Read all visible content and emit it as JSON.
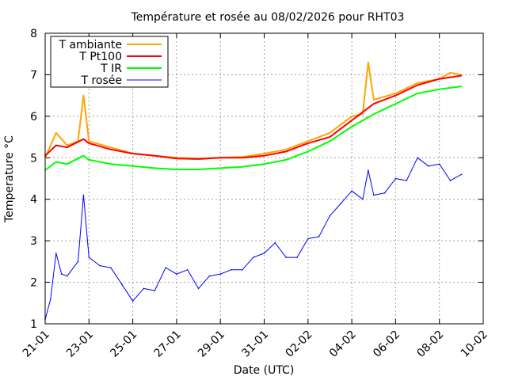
{
  "chart_data": {
    "type": "line",
    "title": "Température et rosée au 08/02/2026 pour RHT03",
    "xlabel": "Date (UTC)",
    "ylabel": "Temperature °C",
    "grid": true,
    "legend_position": "top-left",
    "x_ticks": [
      "21-01",
      "23-01",
      "25-01",
      "27-01",
      "29-01",
      "31-01",
      "02-02",
      "04-02",
      "06-02",
      "08-02",
      "10-02"
    ],
    "x_range": [
      "2026-01-21",
      "2026-02-10"
    ],
    "y_ticks": [
      1,
      2,
      3,
      4,
      5,
      6,
      7,
      8
    ],
    "ylim": [
      1,
      8
    ],
    "series": [
      {
        "name": "T ambiante",
        "color": "#ffa500",
        "x": [
          "2026-01-21",
          "2026-01-21T12",
          "2026-01-22",
          "2026-01-22T12",
          "2026-01-22T18",
          "2026-01-23",
          "2026-01-24",
          "2026-01-25",
          "2026-01-26",
          "2026-01-27",
          "2026-01-28",
          "2026-01-29",
          "2026-01-30",
          "2026-01-31",
          "2026-02-01",
          "2026-02-02",
          "2026-02-03",
          "2026-02-04",
          "2026-02-04T12",
          "2026-02-04T18",
          "2026-02-05",
          "2026-02-06",
          "2026-02-07",
          "2026-02-08",
          "2026-02-08T12",
          "2026-02-09"
        ],
        "values": [
          5.0,
          5.6,
          5.3,
          5.4,
          6.5,
          5.4,
          5.25,
          5.1,
          5.05,
          5.0,
          4.98,
          5.0,
          5.02,
          5.1,
          5.2,
          5.4,
          5.6,
          6.0,
          6.05,
          7.3,
          6.4,
          6.55,
          6.8,
          6.9,
          7.05,
          7.0
        ]
      },
      {
        "name": "T Pt100",
        "color": "#ff0000",
        "x": [
          "2026-01-21",
          "2026-01-21T12",
          "2026-01-22",
          "2026-01-22T18",
          "2026-01-23",
          "2026-01-24",
          "2026-01-25",
          "2026-01-26",
          "2026-01-27",
          "2026-01-28",
          "2026-01-29",
          "2026-01-30",
          "2026-01-31",
          "2026-02-01",
          "2026-02-02",
          "2026-02-03",
          "2026-02-04",
          "2026-02-05",
          "2026-02-06",
          "2026-02-07",
          "2026-02-08",
          "2026-02-09"
        ],
        "values": [
          5.05,
          5.3,
          5.25,
          5.45,
          5.35,
          5.2,
          5.1,
          5.05,
          4.98,
          4.97,
          5.0,
          5.0,
          5.05,
          5.15,
          5.35,
          5.5,
          5.9,
          6.3,
          6.5,
          6.75,
          6.9,
          6.98
        ]
      },
      {
        "name": "T IR",
        "color": "#00ff00",
        "x": [
          "2026-01-21",
          "2026-01-21T12",
          "2026-01-22",
          "2026-01-22T18",
          "2026-01-23",
          "2026-01-24",
          "2026-01-25",
          "2026-01-26",
          "2026-01-27",
          "2026-01-28",
          "2026-01-29",
          "2026-01-30",
          "2026-01-31",
          "2026-02-01",
          "2026-02-02",
          "2026-02-03",
          "2026-02-04",
          "2026-02-05",
          "2026-02-06",
          "2026-02-07",
          "2026-02-08",
          "2026-02-09"
        ],
        "values": [
          4.7,
          4.9,
          4.85,
          5.05,
          4.95,
          4.85,
          4.8,
          4.75,
          4.72,
          4.72,
          4.75,
          4.78,
          4.85,
          4.95,
          5.15,
          5.4,
          5.75,
          6.05,
          6.3,
          6.55,
          6.65,
          6.72
        ]
      },
      {
        "name": "T rosée",
        "color": "#0000ff",
        "x": [
          "2026-01-21",
          "2026-01-21T06",
          "2026-01-21T12",
          "2026-01-21T18",
          "2026-01-22",
          "2026-01-22T12",
          "2026-01-22T18",
          "2026-01-23",
          "2026-01-23T12",
          "2026-01-24",
          "2026-01-24T12",
          "2026-01-25",
          "2026-01-25T12",
          "2026-01-26",
          "2026-01-26T12",
          "2026-01-27",
          "2026-01-27T12",
          "2026-01-28",
          "2026-01-28T12",
          "2026-01-29",
          "2026-01-29T12",
          "2026-01-30",
          "2026-01-30T12",
          "2026-01-31",
          "2026-01-31T12",
          "2026-02-01",
          "2026-02-01T12",
          "2026-02-02",
          "2026-02-02T12",
          "2026-02-03",
          "2026-02-03T12",
          "2026-02-04",
          "2026-02-04T12",
          "2026-02-04T18",
          "2026-02-05",
          "2026-02-05T12",
          "2026-02-06",
          "2026-02-06T12",
          "2026-02-07",
          "2026-02-07T12",
          "2026-02-08",
          "2026-02-08T12",
          "2026-02-09"
        ],
        "values": [
          1.1,
          1.6,
          2.7,
          2.2,
          2.15,
          2.5,
          4.1,
          2.6,
          2.4,
          2.35,
          1.95,
          1.55,
          1.85,
          1.8,
          2.35,
          2.2,
          2.3,
          1.85,
          2.15,
          2.2,
          2.3,
          2.3,
          2.6,
          2.7,
          2.95,
          2.6,
          2.6,
          3.05,
          3.1,
          3.6,
          3.9,
          4.2,
          4.0,
          4.7,
          4.1,
          4.15,
          4.5,
          4.45,
          5.0,
          4.8,
          4.85,
          4.45,
          4.6
        ]
      }
    ]
  }
}
